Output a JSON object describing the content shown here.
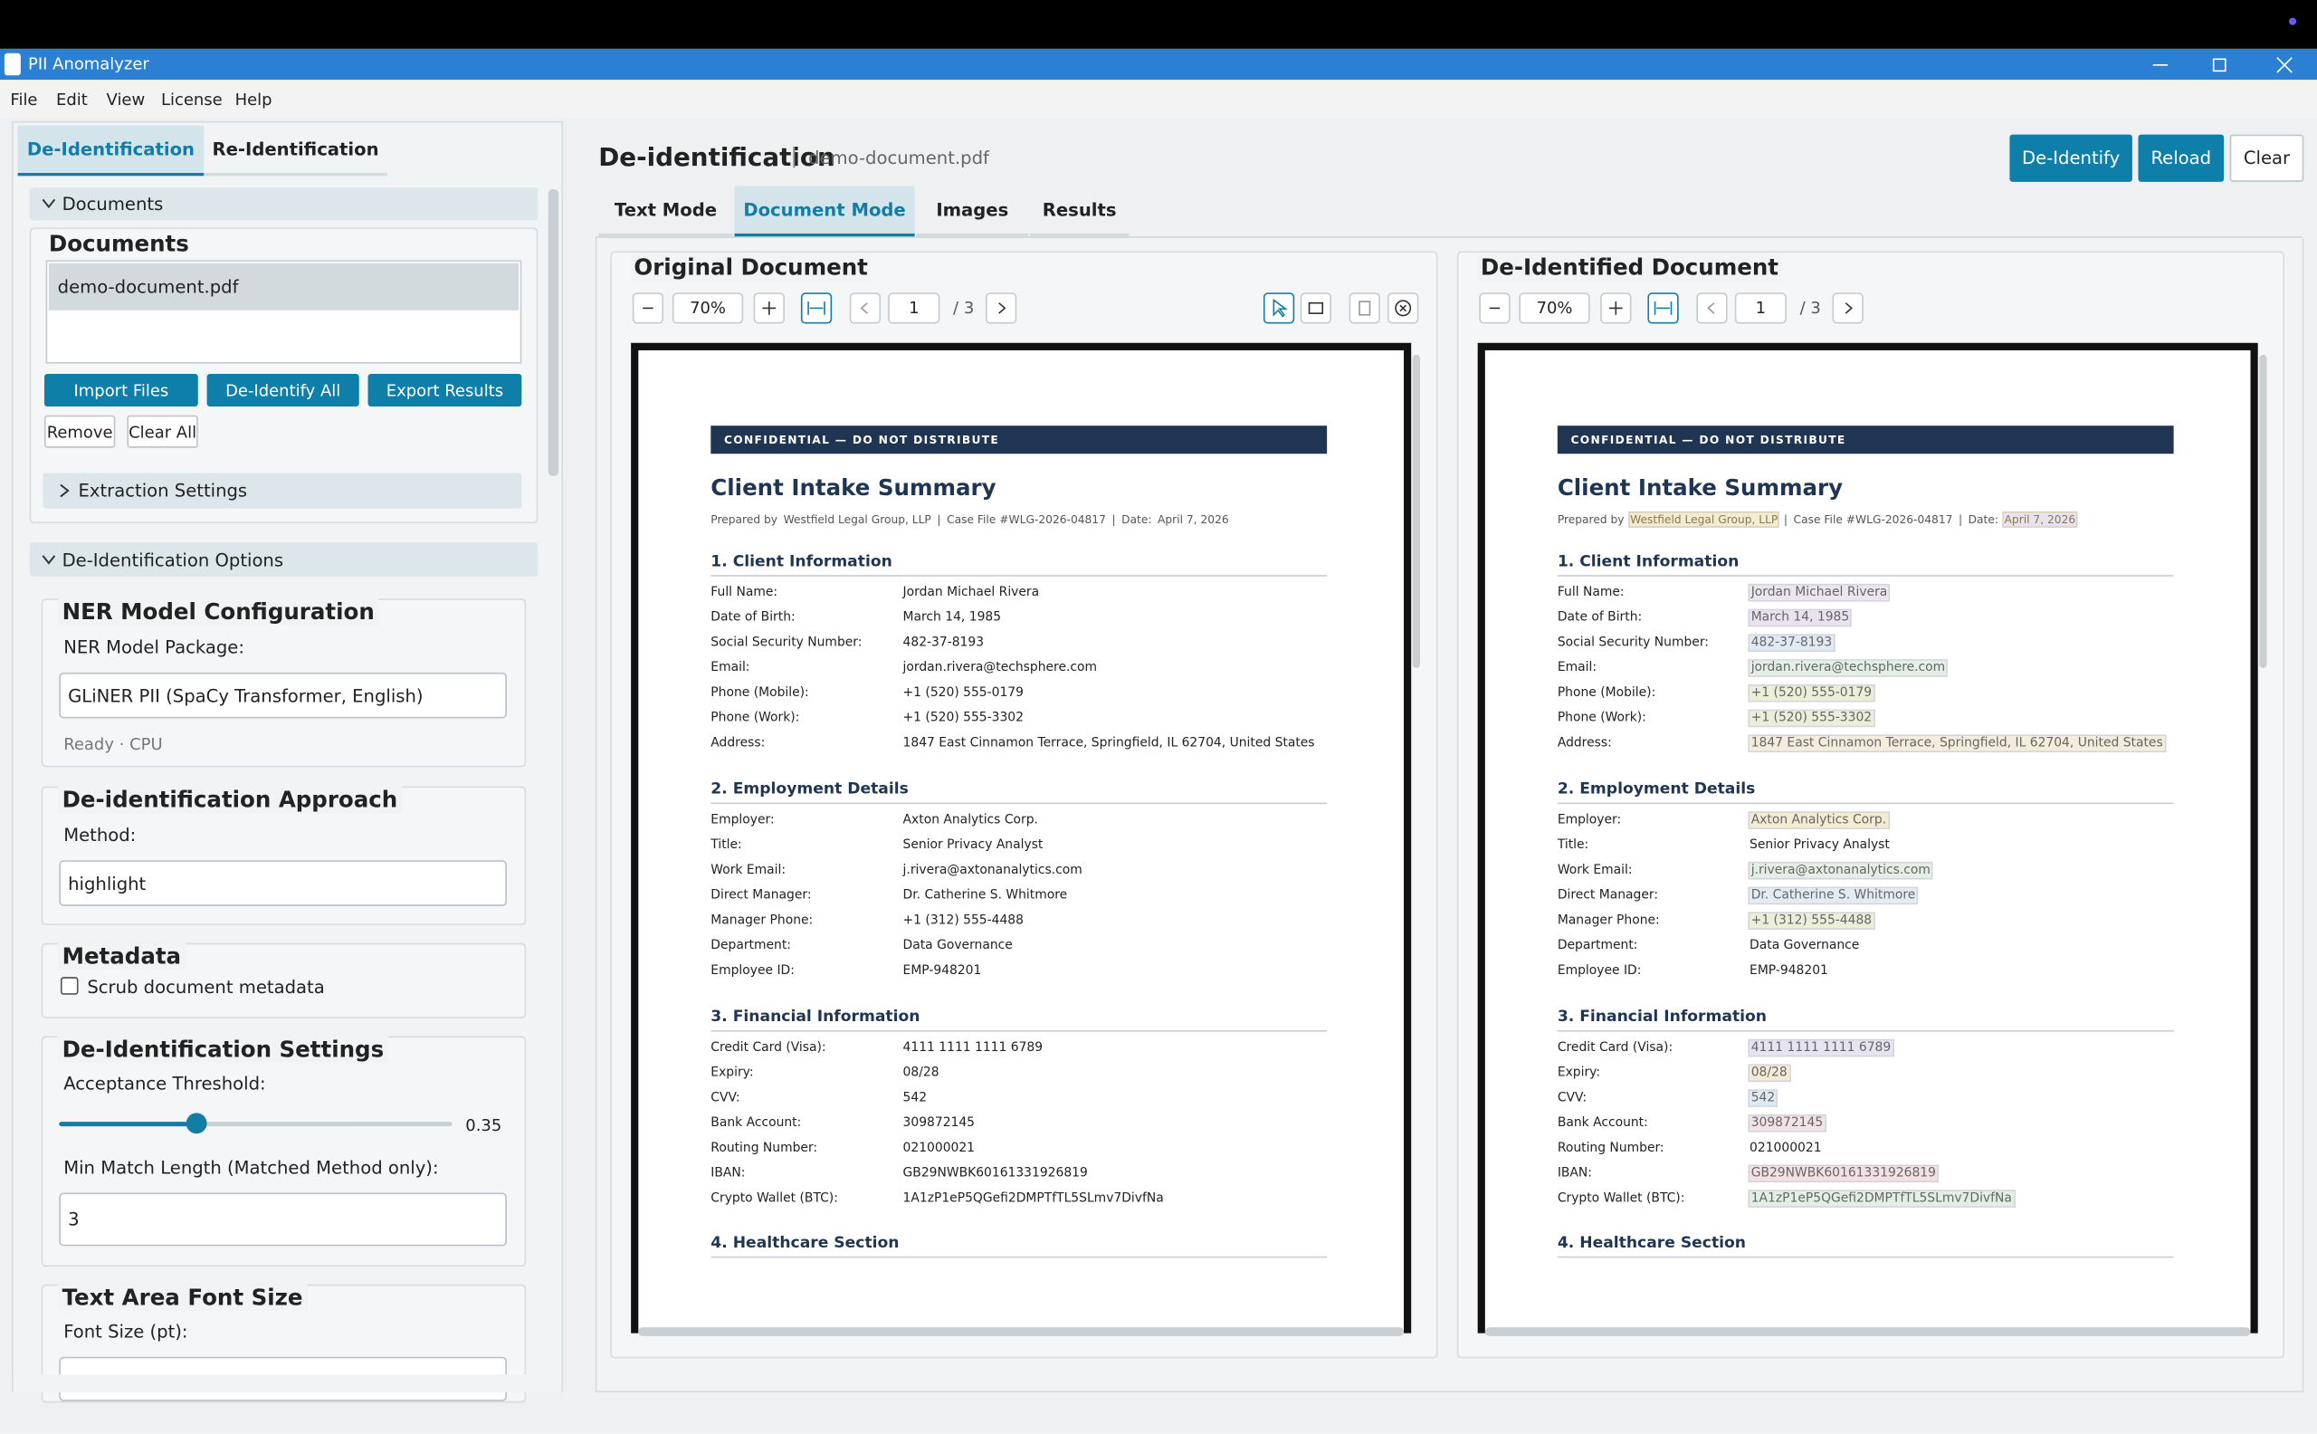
{
  "window": {
    "title": "PII Anomalyzer"
  },
  "menu": [
    "File",
    "Edit",
    "View",
    "License",
    "Help"
  ],
  "left_tabs": [
    "De-Identification",
    "Re-Identification"
  ],
  "documents_section": {
    "header": "Documents",
    "title": "Documents",
    "files": [
      "demo-document.pdf"
    ],
    "buttons": [
      "Import Files",
      "De-Identify All",
      "Export Results"
    ],
    "small_buttons": [
      "Remove",
      "Clear All"
    ],
    "extraction": "Extraction Settings"
  },
  "options": {
    "header": "De-Identification Options",
    "ner": {
      "title": "NER Model Configuration",
      "label": "NER Model Package:",
      "value": "GLiNER PII (SpaCy Transformer, English)",
      "status": "Ready · CPU"
    },
    "approach": {
      "title": "De-identification Approach",
      "label": "Method:",
      "value": "highlight"
    },
    "metadata": {
      "title": "Metadata",
      "checkbox": "Scrub document metadata",
      "checked": false
    },
    "settings": {
      "title": "De-Identification Settings",
      "threshold_label": "Acceptance Threshold:",
      "threshold": 0.35,
      "min_label": "Min Match Length (Matched Method only):",
      "min_value": "3"
    },
    "font": {
      "title": "Text Area Font Size",
      "label": "Font Size (pt):"
    }
  },
  "header": {
    "title": "De-identification",
    "separator": "|",
    "file": "demo-document.pdf",
    "buttons": [
      "De-Identify",
      "Reload",
      "Clear"
    ]
  },
  "mode_tabs": [
    "Text Mode",
    "Document Mode",
    "Images",
    "Results"
  ],
  "panes": [
    {
      "title": "Original Document",
      "zoom": "70%",
      "page": "1",
      "pages": "/ 3"
    },
    {
      "title": "De-Identified Document",
      "zoom": "70%",
      "page": "1",
      "pages": "/ 3"
    }
  ],
  "document": {
    "banner": "CONFIDENTIAL — DO NOT DISTRIBUTE",
    "title": "Client Intake Summary",
    "prepared": [
      {
        "text": "Prepared by"
      },
      {
        "text": "Westfield Legal Group, LLP",
        "highlight": "#f3ecd2"
      },
      {
        "text": "|"
      },
      {
        "text": "Case File #WLG-2026-04817"
      },
      {
        "text": "|"
      },
      {
        "text": "Date:"
      },
      {
        "text": "April 7, 2026",
        "highlight": "#e9e2f1"
      }
    ],
    "sections": [
      {
        "heading": "1. Client Information",
        "rows": [
          {
            "label": "Full Name:",
            "value": "Jordan Michael Rivera",
            "highlight": "#ebe6f0"
          },
          {
            "label": "Date of Birth:",
            "value": "March 14, 1985",
            "highlight": "#e9e2f1"
          },
          {
            "label": "Social Security Number:",
            "value": "482-37-8193",
            "highlight": "#e1eaf4"
          },
          {
            "label": "Email:",
            "value": "jordan.rivera@techsphere.com",
            "highlight": "#e4efe6"
          },
          {
            "label": "Phone (Mobile):",
            "value": "+1 (520) 555-0179",
            "highlight": "#ecefd8"
          },
          {
            "label": "Phone (Work):",
            "value": "+1 (520) 555-3302",
            "highlight": "#ecefd8"
          },
          {
            "label": "Address:",
            "value": "1847 East Cinnamon Terrace, Springfield, IL 62704, United States",
            "highlight": "#f5eddb"
          }
        ]
      },
      {
        "heading": "2. Employment Details",
        "rows": [
          {
            "label": "Employer:",
            "value": "Axton Analytics Corp.",
            "highlight": "#f3ecd2"
          },
          {
            "label": "Title:",
            "value": "Senior Privacy Analyst"
          },
          {
            "label": "Work Email:",
            "value": "j.rivera@axtonanalytics.com",
            "highlight": "#e4efe6"
          },
          {
            "label": "Direct Manager:",
            "value": "Dr. Catherine S. Whitmore",
            "highlight": "#e3ecf5"
          },
          {
            "label": "Manager Phone:",
            "value": "+1 (312) 555-4488",
            "highlight": "#ecefd8"
          },
          {
            "label": "Department:",
            "value": "Data Governance"
          },
          {
            "label": "Employee ID:",
            "value": "EMP-948201"
          }
        ]
      },
      {
        "heading": "3. Financial Information",
        "rows": [
          {
            "label": "Credit Card (Visa):",
            "value": "4111 1111 1111 6789",
            "highlight": "#e6e4f0"
          },
          {
            "label": "Expiry:",
            "value": "08/28",
            "highlight": "#f5e9d8"
          },
          {
            "label": "CVV:",
            "value": "542",
            "highlight": "#e1eaf4"
          },
          {
            "label": "Bank Account:",
            "value": "309872145",
            "highlight": "#f3e2e6"
          },
          {
            "label": "Routing Number:",
            "value": "021000021"
          },
          {
            "label": "IBAN:",
            "value": "GB29NWBK60161331926819",
            "highlight": "#f3e0e3"
          },
          {
            "label": "Crypto Wallet (BTC):",
            "value": "1A1zP1eP5QGefi2DMPTfTL5SLmv7DivfNa",
            "highlight": "#e2f0e4"
          }
        ]
      },
      {
        "heading": "4. Healthcare Section",
        "rows": []
      }
    ]
  }
}
